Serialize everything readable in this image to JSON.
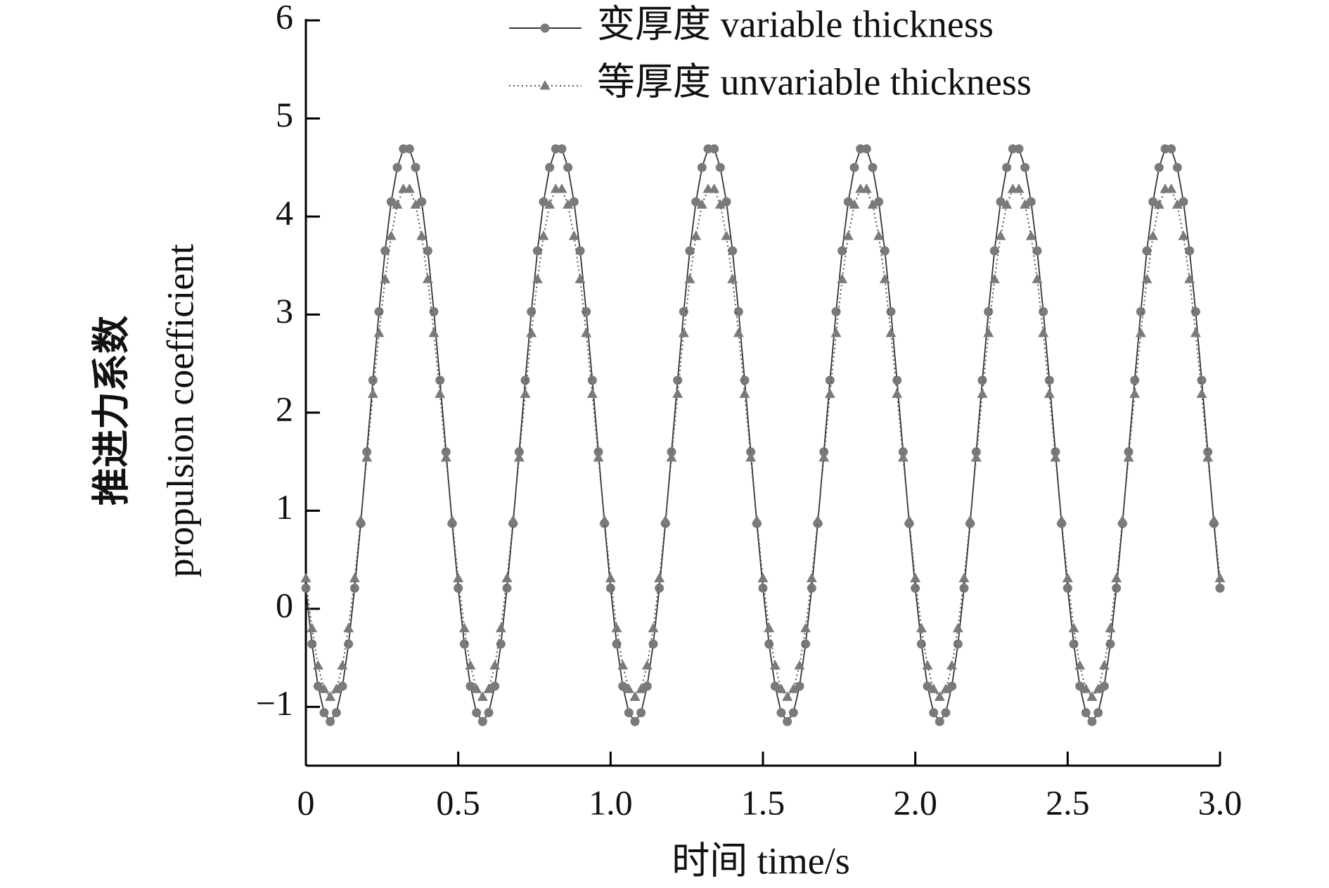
{
  "chart_data": {
    "type": "line",
    "xlabel": "时间 time/s",
    "ylabel": [
      "推进力系数",
      "propulsion coefficient"
    ],
    "x": [
      0,
      0.02,
      0.04,
      0.06,
      0.08,
      0.1,
      0.12,
      0.14,
      0.16,
      0.18,
      0.2,
      0.22,
      0.24,
      0.26,
      0.28,
      0.3,
      0.32,
      0.34,
      0.36,
      0.38,
      0.4,
      0.42,
      0.44,
      0.46,
      0.48,
      0.5,
      0.52,
      0.54,
      0.56,
      0.58,
      0.6,
      0.62,
      0.64,
      0.66,
      0.68,
      0.7,
      0.72,
      0.74,
      0.76,
      0.78,
      0.8,
      0.82,
      0.84,
      0.86,
      0.88,
      0.9,
      0.92,
      0.94,
      0.96,
      0.98,
      1,
      1.02,
      1.04,
      1.06,
      1.08,
      1.1,
      1.12,
      1.14,
      1.16,
      1.18,
      1.2,
      1.22,
      1.24,
      1.26,
      1.28,
      1.3,
      1.32,
      1.34,
      1.36,
      1.38,
      1.4,
      1.42,
      1.44,
      1.46,
      1.48,
      1.5,
      1.52,
      1.54,
      1.56,
      1.58,
      1.6,
      1.62,
      1.64,
      1.66,
      1.68,
      1.7,
      1.72,
      1.74,
      1.76,
      1.78,
      1.8,
      1.82,
      1.84,
      1.86,
      1.88,
      1.9,
      1.92,
      1.94,
      1.96,
      1.98,
      2,
      2.02,
      2.04,
      2.06,
      2.08,
      2.1,
      2.12,
      2.14,
      2.16,
      2.18,
      2.2,
      2.22,
      2.24,
      2.26,
      2.28,
      2.3,
      2.32,
      2.34,
      2.36,
      2.38,
      2.4,
      2.42,
      2.44,
      2.46,
      2.48,
      2.5,
      2.52,
      2.54,
      2.56,
      2.58,
      2.6,
      2.62,
      2.64,
      2.66,
      2.68,
      2.7,
      2.72,
      2.74,
      2.76,
      2.78,
      2.8,
      2.82,
      2.84,
      2.86,
      2.88,
      2.9,
      2.92,
      2.94,
      2.96,
      2.98,
      3
    ],
    "series": [
      {
        "name": "变厚度 variable thickness",
        "color": "#7a7a7a",
        "line_color": "#333333",
        "linestyle": "solid",
        "marker": "circle",
        "values": [
          0.21,
          -0.36,
          -0.79,
          -1.06,
          -1.15,
          -1.06,
          -0.79,
          -0.36,
          0.21,
          0.87,
          1.6,
          2.33,
          3.03,
          3.65,
          4.15,
          4.5,
          4.69,
          4.69,
          4.5,
          4.15,
          3.65,
          3.03,
          2.33,
          1.6,
          0.87,
          0.21,
          -0.36,
          -0.79,
          -1.06,
          -1.15,
          -1.06,
          -0.79,
          -0.36,
          0.21,
          0.87,
          1.6,
          2.33,
          3.03,
          3.65,
          4.15,
          4.5,
          4.69,
          4.69,
          4.5,
          4.15,
          3.65,
          3.03,
          2.33,
          1.6,
          0.87,
          0.21,
          -0.36,
          -0.79,
          -1.06,
          -1.15,
          -1.06,
          -0.79,
          -0.36,
          0.21,
          0.87,
          1.6,
          2.33,
          3.03,
          3.65,
          4.15,
          4.5,
          4.69,
          4.69,
          4.5,
          4.15,
          3.65,
          3.03,
          2.33,
          1.6,
          0.87,
          0.21,
          -0.36,
          -0.79,
          -1.06,
          -1.15,
          -1.06,
          -0.79,
          -0.36,
          0.21,
          0.87,
          1.6,
          2.33,
          3.03,
          3.65,
          4.15,
          4.5,
          4.69,
          4.69,
          4.5,
          4.15,
          3.65,
          3.03,
          2.33,
          1.6,
          0.87,
          0.21,
          -0.36,
          -0.79,
          -1.06,
          -1.15,
          -1.06,
          -0.79,
          -0.36,
          0.21,
          0.87,
          1.6,
          2.33,
          3.03,
          3.65,
          4.15,
          4.5,
          4.69,
          4.69,
          4.5,
          4.15,
          3.65,
          3.03,
          2.33,
          1.6,
          0.87,
          0.21,
          -0.36,
          -0.79,
          -1.06,
          -1.15,
          -1.06,
          -0.79,
          -0.36,
          0.21,
          0.87,
          1.6,
          2.33,
          3.03,
          3.65,
          4.15,
          4.5,
          4.69,
          4.69,
          4.5,
          4.15,
          3.65,
          3.03,
          2.33,
          1.6,
          0.87,
          0.21
        ]
      },
      {
        "name": "等厚度 unvariable thickness",
        "color": "#7a7a7a",
        "line_color": "#555555",
        "linestyle": "dotted",
        "marker": "triangle",
        "values": [
          0.31,
          -0.2,
          -0.58,
          -0.82,
          -0.9,
          -0.82,
          -0.58,
          -0.2,
          0.31,
          0.9,
          1.54,
          2.19,
          2.81,
          3.36,
          3.8,
          4.12,
          4.28,
          4.28,
          4.12,
          3.8,
          3.36,
          2.81,
          2.19,
          1.54,
          0.9,
          0.31,
          -0.2,
          -0.58,
          -0.82,
          -0.9,
          -0.82,
          -0.58,
          -0.2,
          0.31,
          0.9,
          1.54,
          2.19,
          2.81,
          3.36,
          3.8,
          4.12,
          4.28,
          4.28,
          4.12,
          3.8,
          3.36,
          2.81,
          2.19,
          1.54,
          0.9,
          0.31,
          -0.2,
          -0.58,
          -0.82,
          -0.9,
          -0.82,
          -0.58,
          -0.2,
          0.31,
          0.9,
          1.54,
          2.19,
          2.81,
          3.36,
          3.8,
          4.12,
          4.28,
          4.28,
          4.12,
          3.8,
          3.36,
          2.81,
          2.19,
          1.54,
          0.9,
          0.31,
          -0.2,
          -0.58,
          -0.82,
          -0.9,
          -0.82,
          -0.58,
          -0.2,
          0.31,
          0.9,
          1.54,
          2.19,
          2.81,
          3.36,
          3.8,
          4.12,
          4.28,
          4.28,
          4.12,
          3.8,
          3.36,
          2.81,
          2.19,
          1.54,
          0.9,
          0.31,
          -0.2,
          -0.58,
          -0.82,
          -0.9,
          -0.82,
          -0.58,
          -0.2,
          0.31,
          0.9,
          1.54,
          2.19,
          2.81,
          3.36,
          3.8,
          4.12,
          4.28,
          4.28,
          4.12,
          3.8,
          3.36,
          2.81,
          2.19,
          1.54,
          0.9,
          0.31,
          -0.2,
          -0.58,
          -0.82,
          -0.9,
          -0.82,
          -0.58,
          -0.2,
          0.31,
          0.9,
          1.54,
          2.19,
          2.81,
          3.36,
          3.8,
          4.12,
          4.28,
          4.28,
          4.12,
          3.8,
          3.36,
          2.81,
          2.19,
          1.54,
          0.9,
          0.31
        ]
      }
    ],
    "xlim": [
      0,
      3
    ],
    "xticks": [
      0,
      0.5,
      {
        "value": 1,
        "label": "1.0"
      },
      1.5,
      {
        "value": 2,
        "label": "2.0"
      },
      2.5,
      {
        "value": 3,
        "label": "3.0"
      }
    ],
    "ylim": [
      -1.6,
      6
    ],
    "yticks": [
      {
        "value": -1,
        "label": "−1"
      },
      0,
      1,
      2,
      3,
      4,
      5,
      6
    ],
    "grid": false,
    "legend": "top"
  }
}
